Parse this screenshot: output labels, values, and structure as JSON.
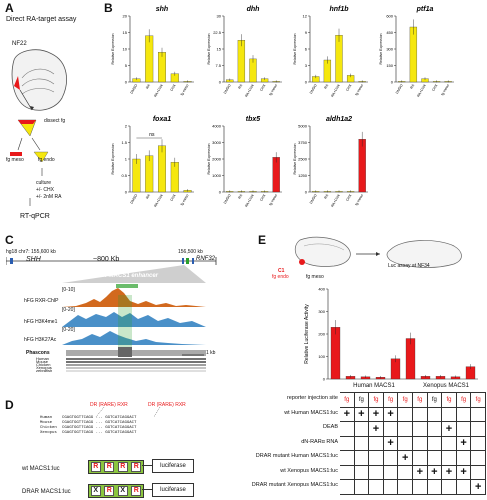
{
  "panels": {
    "A": {
      "letter": "A",
      "title": "Direct RA-target assay",
      "stage": "NF22",
      "dissect": "dissect fg",
      "fg_meso": "fg meso",
      "fg_endo": "fg endo",
      "culture_lines": [
        "culture",
        "+/- CHX",
        "+/- 2nM RA"
      ],
      "rt": "RT-qPCR"
    },
    "B": {
      "letter": "B"
    },
    "C": {
      "letter": "C",
      "coord_left": "hg18 chr7: 155,600 kb",
      "coord_right": "156,500 kb",
      "gene_left": "SHH",
      "gene_right": "RNF32",
      "distance": "~800 Kb",
      "enhancer": "SHH-MACS1 enhancer",
      "tracks": [
        {
          "name": "hFG RXR-ChIP",
          "range": "[0-10]",
          "color": "#d2691e"
        },
        {
          "name": "hFG H3K4me1",
          "range": "[0-20]",
          "color": "#4a90c8"
        },
        {
          "name": "hFG H3K27Ac",
          "range": "[0-20]",
          "color": "#4a90c8"
        }
      ],
      "phastcons": "Phascons",
      "scale": "1 kb",
      "species": [
        "Human",
        "Mouse",
        "Chicken",
        "Xenopus",
        "zebrafish"
      ]
    },
    "D": {
      "letter": "D",
      "left_site": "DR (RARE) RXR",
      "right_site": "DR (RARE) RXR",
      "species_lines": [
        {
          "sp": "Human",
          "l": "CGAGTGGTTCAGG",
          "r": "GGTCATCAGGACT"
        },
        {
          "sp": "Mouse",
          "l": "CGAGTGGTTCAGG",
          "r": "GGTCATCAGGACT"
        },
        {
          "sp": "Chicken",
          "l": "CGAGTGGTTCAGG",
          "r": "GGTCATCAGGACT"
        },
        {
          "sp": "Xenopus",
          "l": "CGAGTGGTTCAGG",
          "r": "GGTCATCAGGACT"
        }
      ],
      "wt_label": "wt MACS1:luc",
      "wt_boxes": [
        "R",
        "R",
        "R",
        "R"
      ],
      "mut_label": "DRAR MACS1:luc",
      "mut_boxes": [
        "X",
        "R",
        "X",
        "R"
      ],
      "luciferase": "luciferase"
    },
    "E": {
      "letter": "E",
      "c1": "C1",
      "fg_endo": "fg endo",
      "fg_meso": "fg meso",
      "assay": "Luc assay  at NF34",
      "groups": [
        "Human  MACS1",
        "Xenopus  MACS1"
      ],
      "row_labels": [
        "reporter injection site",
        "wt Human MACS1:luc",
        "DEAB",
        "dN-RARα RNA",
        "DRAR mutant Human MACS1:luc",
        "wt Xenopus MACS1:luc",
        "DRAR mutant Xenopus MACS1:luc"
      ],
      "columns": [
        "fg",
        "fg",
        "fg",
        "fg",
        "fg",
        "fg",
        "fg",
        "fg",
        "fg",
        "fg"
      ],
      "column_colors": [
        "red",
        "black",
        "red",
        "red",
        "red",
        "red",
        "black",
        "red",
        "red",
        "red"
      ],
      "marks": [
        [
          1,
          1,
          1,
          1,
          0,
          0,
          0,
          0,
          0,
          0
        ],
        [
          0,
          0,
          1,
          0,
          0,
          0,
          0,
          1,
          0,
          0
        ],
        [
          0,
          0,
          0,
          1,
          0,
          0,
          0,
          0,
          1,
          0
        ],
        [
          0,
          0,
          0,
          0,
          1,
          0,
          0,
          0,
          0,
          0
        ],
        [
          0,
          0,
          0,
          0,
          0,
          1,
          1,
          1,
          1,
          0
        ],
        [
          0,
          0,
          0,
          0,
          0,
          0,
          0,
          0,
          0,
          1
        ]
      ],
      "plus": "+"
    }
  },
  "chart_data": [
    {
      "type": "bar",
      "title": "shh",
      "ylabel": "Relative Expression",
      "categories": [
        "DMSO",
        "RA",
        "RA+CHX",
        "CHX",
        "fg meso"
      ],
      "values": [
        1.0,
        14.0,
        9.0,
        2.5,
        0.1
      ],
      "ylim": [
        0,
        20
      ],
      "color": "#f5e70e"
    },
    {
      "type": "bar",
      "title": "dhh",
      "ylabel": "Relative Expression",
      "categories": [
        "DMSO",
        "RA",
        "RA+CHX",
        "CHX",
        "fg meso"
      ],
      "values": [
        1.0,
        19.0,
        10.5,
        1.5,
        0.1
      ],
      "ylim": [
        0,
        30
      ],
      "color": "#f5e70e"
    },
    {
      "type": "bar",
      "title": "hnf1b",
      "ylabel": "Relative Expression",
      "categories": [
        "DMSO",
        "RA",
        "RA+CHX",
        "CHX",
        "fg meso"
      ],
      "values": [
        1.0,
        4.0,
        8.5,
        1.2,
        0.1
      ],
      "ylim": [
        0,
        12
      ],
      "color": "#f5e70e"
    },
    {
      "type": "bar",
      "title": "ptf1a",
      "ylabel": "Relative Expression",
      "categories": [
        "DMSO",
        "RA",
        "RA+CHX",
        "CHX",
        "fg meso"
      ],
      "values": [
        1.0,
        500,
        30,
        5,
        0.5
      ],
      "ylim": [
        0,
        600
      ],
      "color": "#f5e70e"
    },
    {
      "type": "bar",
      "title": "foxa1",
      "ylabel": "Relative Expression",
      "categories": [
        "DMSO",
        "RA",
        "RA+CHX",
        "CHX",
        "fg meso"
      ],
      "values": [
        1.0,
        1.1,
        1.4,
        0.9,
        0.05
      ],
      "ylim": [
        0,
        2
      ],
      "color": "#f5e70e",
      "annotation": "ns"
    },
    {
      "type": "bar",
      "title": "tbx5",
      "ylabel": "Relative Expression",
      "categories": [
        "DMSO",
        "RA",
        "RA+CHX",
        "CHX",
        "fg meso"
      ],
      "values": [
        1,
        1,
        1,
        1,
        2100
      ],
      "ylim": [
        0,
        4000
      ],
      "color": "#f5e70e",
      "last_color": "#e8191b"
    },
    {
      "type": "bar",
      "title": "aldh1a2",
      "ylabel": "Relative Expression",
      "categories": [
        "DMSO",
        "RA",
        "RA+CHX",
        "CHX",
        "fg meso"
      ],
      "values": [
        1,
        2,
        3,
        1,
        4000
      ],
      "ylim": [
        0,
        5000
      ],
      "color": "#f5e70e",
      "last_color": "#e8191b"
    },
    {
      "type": "bar",
      "ylabel": "Relative Luciferase Activity",
      "categories": [
        "1",
        "2",
        "3",
        "4",
        "5",
        "6",
        "7",
        "8",
        "9",
        "10"
      ],
      "values": [
        230,
        12,
        10,
        8,
        90,
        180,
        12,
        12,
        10,
        55
      ],
      "ylim": [
        0,
        400
      ],
      "color": "#e8191b"
    }
  ]
}
